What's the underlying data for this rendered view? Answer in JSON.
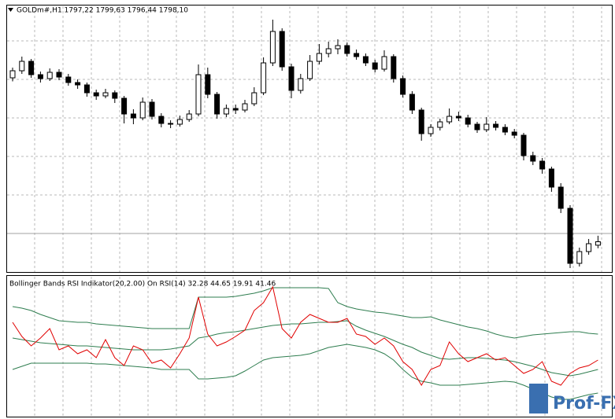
{
  "chart_data": [
    {
      "type": "candlestick",
      "title": "GOLDm#,H1  1797,22 1799,63 1796,44 1798,10",
      "open": [
        1839.8,
        1841.6,
        1844.0,
        1840.6,
        1839.6,
        1841.2,
        1840.0,
        1838.6,
        1838.0,
        1836.0,
        1835.2,
        1836.0,
        1834.6,
        1830.6,
        1829.6,
        1833.6,
        1830.0,
        1828.2,
        1828.0,
        1829.2,
        1830.6,
        1840.6,
        1835.6,
        1830.6,
        1832.0,
        1831.6,
        1833.2,
        1836.0,
        1843.6,
        1851.6,
        1842.6,
        1836.6,
        1839.6,
        1844.0,
        1846.0,
        1847.2,
        1848.0,
        1846.0,
        1845.2,
        1843.6,
        1842.0,
        1845.2,
        1839.6,
        1835.6,
        1831.6,
        1825.6,
        1827.2,
        1828.6,
        1830.0,
        1829.6,
        1828.0,
        1826.6,
        1828.0,
        1827.2,
        1826.0,
        1825.2,
        1820.0,
        1818.6,
        1816.6,
        1812.0,
        1806.6,
        1792.6,
        1795.6,
        1797.22
      ],
      "high": [
        1842.4,
        1845.2,
        1844.6,
        1841.4,
        1842.2,
        1842.0,
        1840.8,
        1839.4,
        1838.6,
        1836.8,
        1837.0,
        1836.6,
        1835.2,
        1831.8,
        1834.8,
        1834.4,
        1830.8,
        1829.0,
        1830.2,
        1831.6,
        1843.2,
        1842.4,
        1836.2,
        1833.0,
        1833.0,
        1834.2,
        1837.4,
        1845.0,
        1854.6,
        1852.4,
        1843.4,
        1840.8,
        1845.6,
        1848.4,
        1849.0,
        1849.6,
        1848.8,
        1847.0,
        1846.0,
        1844.4,
        1846.8,
        1845.8,
        1840.4,
        1836.4,
        1832.2,
        1828.0,
        1829.4,
        1832.0,
        1831.2,
        1830.4,
        1828.6,
        1829.8,
        1828.8,
        1828.0,
        1826.8,
        1825.8,
        1821.0,
        1819.4,
        1817.2,
        1813.0,
        1807.4,
        1796.6,
        1798.8,
        1799.63
      ],
      "low": [
        1838.9,
        1840.8,
        1839.8,
        1838.6,
        1839.0,
        1839.2,
        1837.8,
        1837.0,
        1835.0,
        1834.2,
        1834.6,
        1833.4,
        1828.2,
        1828.0,
        1829.0,
        1829.2,
        1827.2,
        1827.0,
        1827.4,
        1828.6,
        1830.0,
        1834.6,
        1829.4,
        1829.8,
        1830.6,
        1831.0,
        1832.6,
        1835.4,
        1842.8,
        1841.6,
        1834.6,
        1835.8,
        1839.0,
        1843.2,
        1845.0,
        1845.8,
        1845.2,
        1844.4,
        1842.8,
        1841.2,
        1841.4,
        1838.6,
        1834.8,
        1830.6,
        1823.8,
        1824.8,
        1826.4,
        1828.0,
        1828.8,
        1827.2,
        1825.8,
        1826.0,
        1826.4,
        1825.2,
        1824.4,
        1818.8,
        1817.6,
        1815.4,
        1810.8,
        1805.4,
        1791.4,
        1791.8,
        1794.8,
        1796.44
      ],
      "close": [
        1841.6,
        1844.0,
        1840.6,
        1839.6,
        1841.2,
        1840.0,
        1838.6,
        1838.0,
        1836.0,
        1835.2,
        1836.0,
        1834.6,
        1830.6,
        1829.6,
        1833.6,
        1830.0,
        1828.2,
        1828.0,
        1829.2,
        1830.6,
        1840.6,
        1835.6,
        1830.6,
        1832.0,
        1831.6,
        1833.2,
        1836.0,
        1843.6,
        1851.6,
        1842.6,
        1836.6,
        1839.6,
        1844.0,
        1846.0,
        1847.2,
        1848.0,
        1846.0,
        1845.2,
        1843.6,
        1842.0,
        1845.2,
        1839.6,
        1835.6,
        1831.6,
        1825.6,
        1827.2,
        1828.6,
        1830.0,
        1829.6,
        1828.0,
        1826.6,
        1828.0,
        1827.2,
        1826.0,
        1825.2,
        1820.0,
        1818.6,
        1816.6,
        1812.0,
        1806.6,
        1792.6,
        1795.6,
        1797.6,
        1798.1
      ],
      "ylim": [
        1790.4,
        1858.0
      ],
      "price_line": 1800.2,
      "grid": true,
      "up_color": "#ffffff",
      "down_color": "#000000"
    },
    {
      "type": "line",
      "title": "Bollinger Bands RSI Indikator(20,2.00) On RSI(14) 32.28 44.65 19.91 41.46",
      "ylim": [
        0,
        85
      ],
      "grid": true,
      "series": [
        {
          "color": "#2e7d4f",
          "values": [
            70,
            69,
            67.5,
            65,
            63,
            61,
            60.5,
            60,
            60,
            59,
            58.5,
            58,
            57.5,
            57,
            56.5,
            56,
            56,
            56,
            56,
            56,
            76,
            76,
            76,
            76,
            76.5,
            77.5,
            78.5,
            80,
            82,
            82,
            82,
            82,
            82,
            82,
            81.5,
            72.5,
            70,
            68.5,
            67.5,
            66.5,
            66,
            65,
            64,
            63,
            63,
            63.5,
            61.5,
            60,
            58.5,
            57,
            56,
            54.5,
            52.5,
            51,
            50,
            51,
            52,
            52.5,
            53,
            53.5,
            54,
            54,
            53,
            52.5
          ]
        },
        {
          "color": "#2e7d4f",
          "values": [
            50,
            49,
            48,
            47,
            46.5,
            46,
            45.5,
            45,
            45,
            44.5,
            44,
            43.5,
            43,
            42.5,
            42.5,
            42.5,
            42.5,
            43,
            44,
            45,
            50,
            51,
            52.5,
            53.5,
            54,
            55,
            56,
            57,
            58,
            58.5,
            59,
            59,
            59.5,
            60,
            60,
            60.5,
            61,
            57.5,
            55,
            53,
            51,
            48.5,
            46,
            44,
            41,
            39,
            37,
            36.5,
            37,
            37.5,
            37.5,
            37,
            36.5,
            36,
            35,
            33.5,
            32,
            30,
            28,
            27,
            26,
            27,
            28.5,
            30
          ]
        },
        {
          "color": "#2e7d4f",
          "values": [
            30,
            32,
            34,
            34,
            34,
            34,
            34,
            34,
            34,
            33.5,
            33.5,
            33,
            32.5,
            32,
            31.5,
            31,
            30,
            30,
            30,
            30,
            24,
            24,
            24.5,
            25,
            26,
            29,
            32.5,
            36,
            37.5,
            38,
            38.5,
            39,
            40,
            42,
            44,
            45,
            46,
            45,
            44,
            42.5,
            40,
            36,
            30,
            25,
            22.5,
            21.5,
            20,
            20,
            20,
            20.5,
            21,
            21.5,
            22,
            22.5,
            22,
            20,
            17.5,
            15,
            12.5,
            11,
            11,
            12.5,
            14,
            15
          ]
        },
        {
          "color": "#e00000",
          "values": [
            60,
            51,
            45,
            50,
            56,
            42.5,
            45,
            40,
            42.5,
            37.5,
            49,
            37.5,
            32.5,
            45,
            42.5,
            34,
            36,
            31,
            40,
            50,
            76,
            52.5,
            45,
            47.5,
            51,
            55,
            67.5,
            72.5,
            82.5,
            56,
            50,
            60,
            65,
            62.5,
            60,
            60,
            62.5,
            52.5,
            51,
            46,
            50,
            45,
            35,
            30,
            20,
            30,
            32.5,
            47.5,
            40,
            35,
            37.5,
            40,
            36,
            37.5,
            32.5,
            27.5,
            30,
            35,
            22.5,
            20,
            27.5,
            31,
            32.5,
            36
          ]
        }
      ]
    }
  ],
  "watermark": "Prof-FX"
}
